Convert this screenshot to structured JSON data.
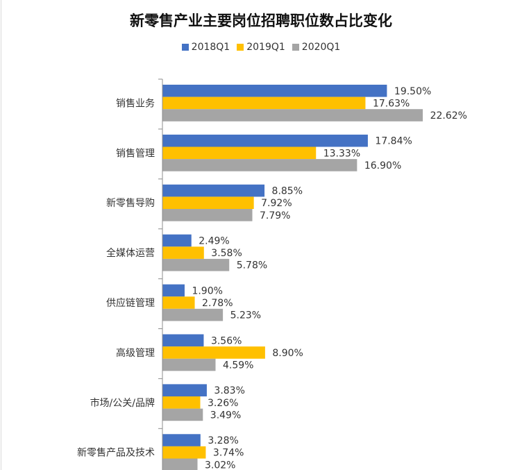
{
  "chart_data": {
    "type": "bar",
    "orientation": "horizontal",
    "title": "新零售产业主要岗位招聘职位数占比变化",
    "categories": [
      "销售业务",
      "销售管理",
      "新零售导购",
      "全媒体运营",
      "供应链管理",
      "高级管理",
      "市场/公关/品牌",
      "新零售产品及技术"
    ],
    "series": [
      {
        "name": "2018Q1",
        "color": "#4472C4",
        "values": [
          19.5,
          17.84,
          8.85,
          2.49,
          1.9,
          3.56,
          3.83,
          3.28
        ],
        "labels": [
          "19.50%",
          "17.84%",
          "8.85%",
          "2.49%",
          "1.90%",
          "3.56%",
          "3.83%",
          "3.28%"
        ]
      },
      {
        "name": "2019Q1",
        "color": "#FFC000",
        "values": [
          17.63,
          13.33,
          7.92,
          3.58,
          2.78,
          8.9,
          3.26,
          3.74
        ],
        "labels": [
          "17.63%",
          "13.33%",
          "7.92%",
          "3.58%",
          "2.78%",
          "8.90%",
          "3.26%",
          "3.74%"
        ]
      },
      {
        "name": "2020Q1",
        "color": "#A5A5A5",
        "values": [
          22.62,
          16.9,
          7.79,
          5.78,
          5.23,
          4.59,
          3.49,
          3.02
        ],
        "labels": [
          "22.62%",
          "16.90%",
          "7.79%",
          "5.78%",
          "5.23%",
          "4.59%",
          "3.49%",
          "3.02%"
        ]
      }
    ],
    "legend_position": "top",
    "grid": false,
    "xlim": [
      0,
      25
    ]
  }
}
